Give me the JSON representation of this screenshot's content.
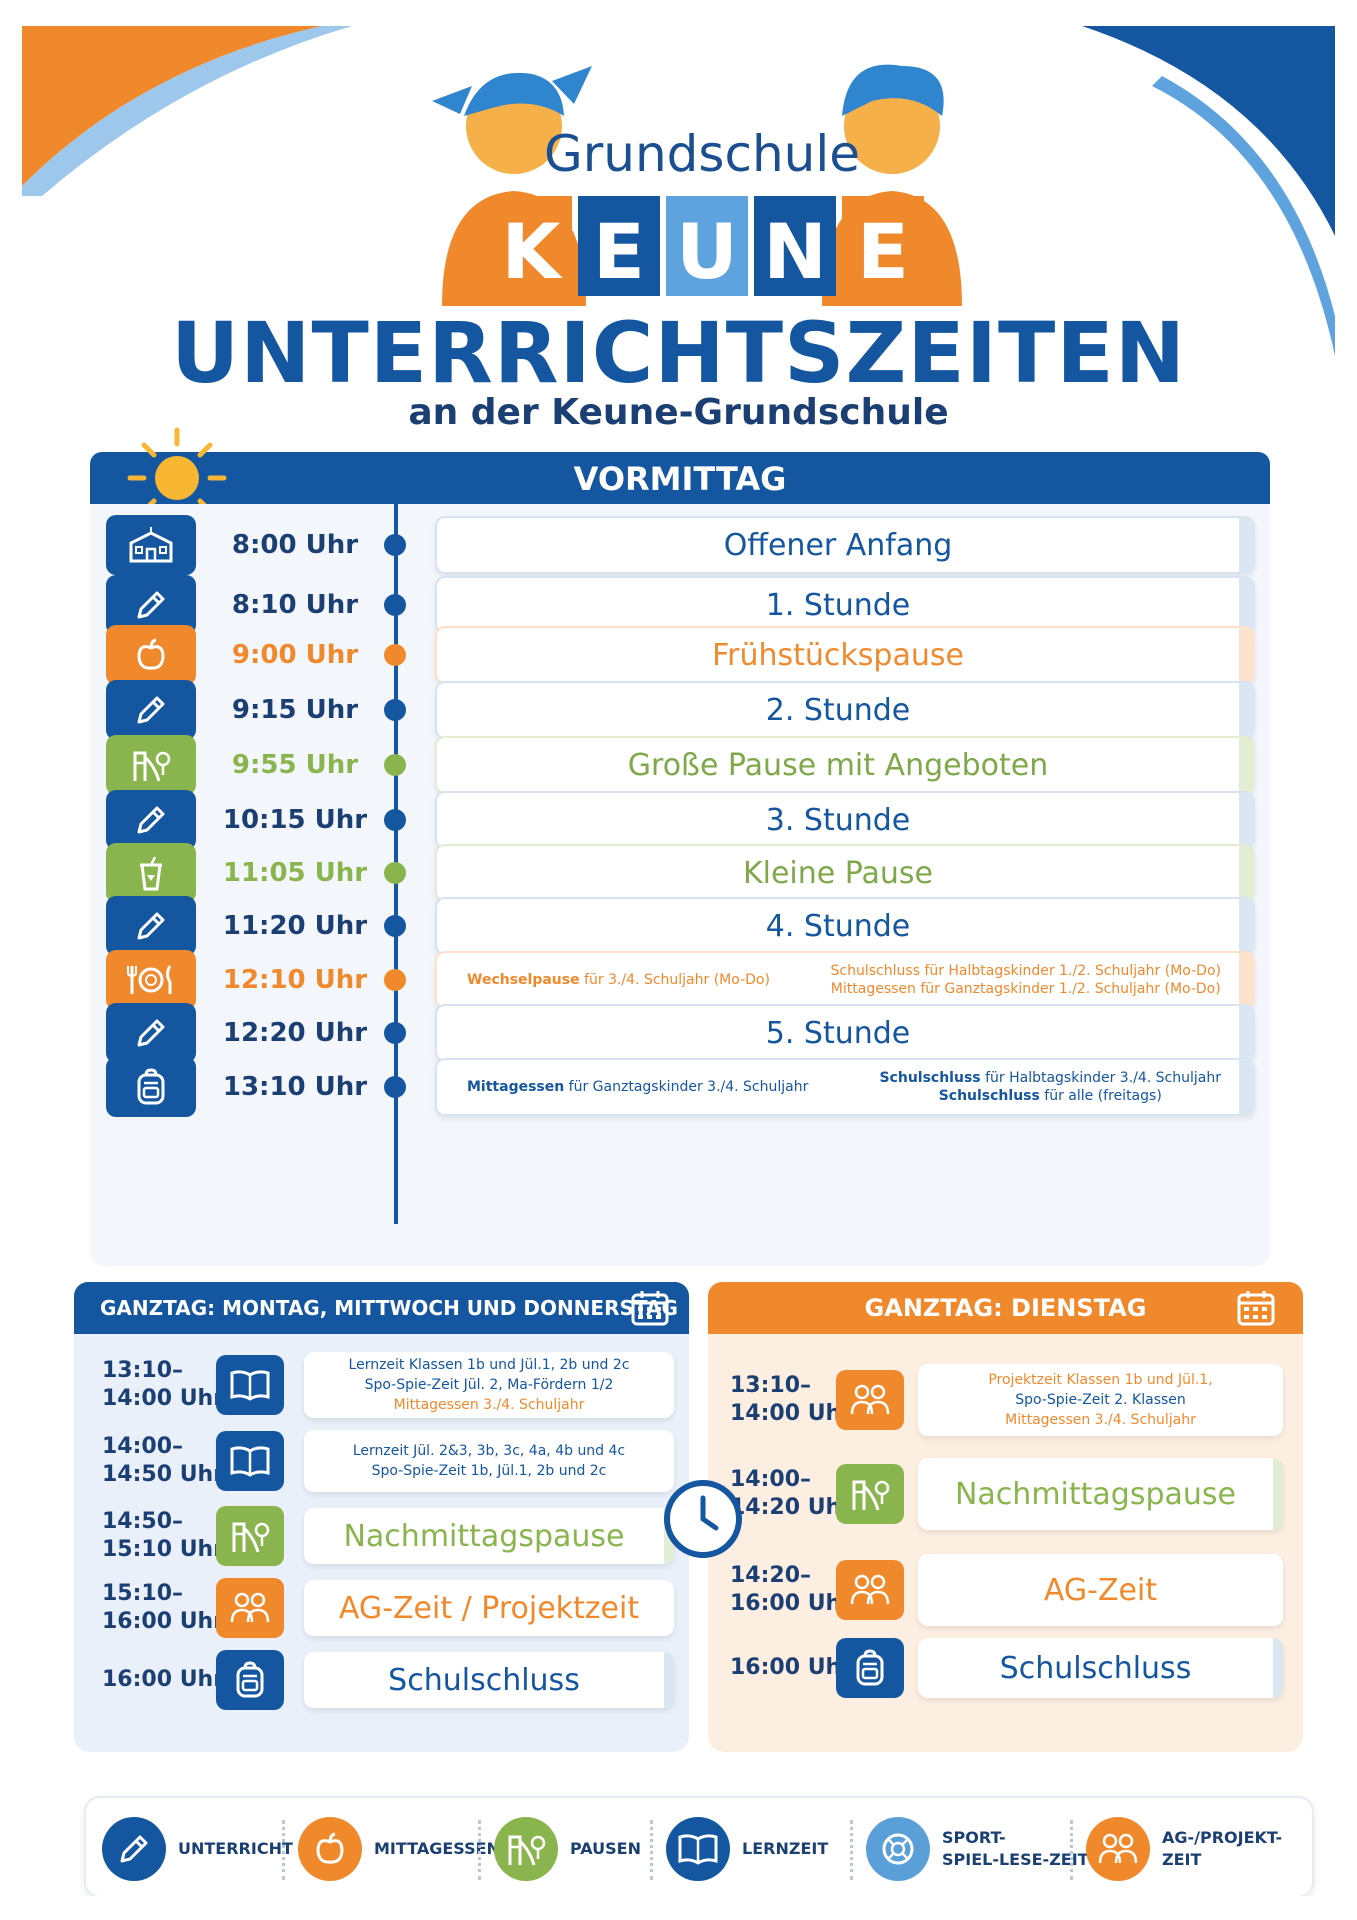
{
  "colors": {
    "blue": "#1456a0",
    "orange": "#f0892c",
    "green": "#8ab54e",
    "dark": "#1b3f73"
  },
  "logo": {
    "line1": "Grundschule",
    "letters": [
      "K",
      "E",
      "U",
      "N",
      "E"
    ]
  },
  "header": {
    "title": "UNTERRICHTSZEITEN",
    "subtitle": "an der Keune-Grundschule"
  },
  "vormittag": {
    "title": "VORMITTAG",
    "rows": [
      {
        "time": "8:00 Uhr",
        "label": "Offener Anfang",
        "color": "blue",
        "icon": "school-building-icon"
      },
      {
        "time": "8:10 Uhr",
        "label": "1. Stunde",
        "color": "blue",
        "icon": "pencil-icon"
      },
      {
        "time": "9:00 Uhr",
        "label": "Frühstückspause",
        "color": "orange",
        "icon": "apple-icon"
      },
      {
        "time": "9:15 Uhr",
        "label": "2. Stunde",
        "color": "blue",
        "icon": "pencil-icon"
      },
      {
        "time": "9:55 Uhr",
        "label": "Große Pause mit Angeboten",
        "color": "green",
        "icon": "playground-icon"
      },
      {
        "time": "10:15 Uhr",
        "label": "3. Stunde",
        "color": "blue",
        "icon": "pencil-icon"
      },
      {
        "time": "11:05 Uhr",
        "label": "Kleine Pause",
        "color": "green",
        "icon": "cup-icon"
      },
      {
        "time": "11:20 Uhr",
        "label": "4. Stunde",
        "color": "blue",
        "icon": "pencil-icon"
      },
      {
        "time": "12:10 Uhr",
        "color": "orange",
        "icon": "plate-cutlery-icon",
        "left_bold": "Wechselpause",
        "left_rest": " für 3./4. Schuljahr (Mo-Do)",
        "right_line1": "Schulschluss für Halbtagskinder 1./2. Schuljahr (Mo-Do)",
        "right_line2": "Mittagessen für Ganztagskinder 1./2. Schuljahr (Mo-Do)"
      },
      {
        "time": "12:20 Uhr",
        "label": "5. Stunde",
        "color": "blue",
        "icon": "pencil-icon"
      },
      {
        "time": "13:10 Uhr",
        "color": "blue",
        "icon": "backpack-icon",
        "left_bold": "Mittagessen",
        "left_rest": " für Ganztagskinder 3./4. Schuljahr",
        "right1_bold": "Schulschluss",
        "right1_rest": " für Halbtagskinder 3./4. Schuljahr",
        "right2_bold": "Schulschluss",
        "right2_rest": " für alle (freitags)"
      }
    ]
  },
  "ganztag_left": {
    "title": "GANZTAG: MONTAG, MITTWOCH UND DONNERSTAG",
    "rows": [
      {
        "time1": "13:10–",
        "time2": "14:00 Uhr",
        "icon": "book-icon",
        "lines": [
          "Lernzeit Klassen 1b und Jül.1, 2b und 2c",
          "Spo-Spie-Zeit Jül. 2, Ma-Fördern 1/2",
          "Mittagessen 3./4. Schuljahr"
        ]
      },
      {
        "time1": "14:00–",
        "time2": "14:50 Uhr",
        "icon": "book-icon",
        "lines": [
          "Lernzeit Jül. 2&3, 3b, 3c, 4a, 4b und 4c",
          "Spo-Spie-Zeit 1b, Jül.1, 2b und 2c"
        ]
      },
      {
        "time1": "14:50–",
        "time2": "15:10 Uhr",
        "icon": "playground-icon",
        "label": "Nachmittagspause"
      },
      {
        "time1": "15:10–",
        "time2": "16:00 Uhr",
        "icon": "group-icon",
        "label": "AG-Zeit / Projektzeit"
      },
      {
        "time1": "16:00 Uhr",
        "time2": "",
        "icon": "backpack-icon",
        "label": "Schulschluss"
      }
    ]
  },
  "ganztag_right": {
    "title": "GANZTAG: DIENSTAG",
    "rows": [
      {
        "time1": "13:10–",
        "time2": "14:00 Uhr",
        "icon": "group-icon",
        "lines": [
          "Projektzeit Klassen 1b und Jül.1,",
          "Spo-Spie-Zeit 2. Klassen",
          "Mittagessen 3./4. Schuljahr"
        ]
      },
      {
        "time1": "14:00–",
        "time2": "14:20 Uhr",
        "icon": "playground-icon",
        "label": "Nachmittagspause"
      },
      {
        "time1": "14:20–",
        "time2": "16:00 Uhr",
        "icon": "group-icon",
        "label": "AG-Zeit"
      },
      {
        "time1": "16:00 Uhr",
        "time2": "",
        "icon": "backpack-icon",
        "label": "Schulschluss"
      }
    ]
  },
  "legend": [
    {
      "label1": "UNTERRICHT",
      "label2": "",
      "icon": "pencil-icon",
      "color": "#1456a0"
    },
    {
      "label1": "MITTAGESSEN",
      "label2": "",
      "icon": "apple-icon",
      "color": "#f0892c"
    },
    {
      "label1": "PAUSEN",
      "label2": "",
      "icon": "playground-icon",
      "color": "#8ab54e"
    },
    {
      "label1": "LERNZEIT",
      "label2": "",
      "icon": "book-icon",
      "color": "#1456a0"
    },
    {
      "label1": "SPORT-",
      "label2": "SPIEL-LESE-ZEIT",
      "icon": "ball-icon",
      "color": "#5a9fd8"
    },
    {
      "label1": "AG-/PROJEKT-",
      "label2": "ZEIT",
      "icon": "group-icon",
      "color": "#f0892c"
    }
  ]
}
